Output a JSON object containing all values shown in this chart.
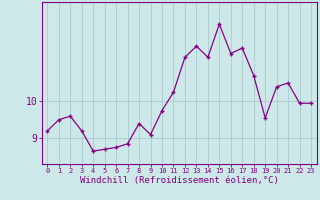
{
  "x": [
    0,
    1,
    2,
    3,
    4,
    5,
    6,
    7,
    8,
    9,
    10,
    11,
    12,
    13,
    14,
    15,
    16,
    17,
    18,
    19,
    20,
    21,
    22,
    23
  ],
  "y": [
    9.2,
    9.5,
    9.6,
    9.2,
    8.65,
    8.7,
    8.75,
    8.85,
    9.4,
    9.1,
    9.75,
    10.25,
    11.2,
    11.5,
    11.2,
    12.1,
    11.3,
    11.45,
    10.7,
    9.55,
    10.4,
    10.5,
    9.95,
    9.95
  ],
  "line_color": "#880088",
  "marker": "+",
  "bg_color": "#cce8e8",
  "grid_color": "#aacccc",
  "xlabel": "Windchill (Refroidissement éolien,°C)",
  "yticks": [
    9,
    10
  ],
  "xlim": [
    -0.5,
    23.5
  ],
  "ylim": [
    8.3,
    12.7
  ],
  "tick_color": "#800080",
  "font_family": "monospace"
}
